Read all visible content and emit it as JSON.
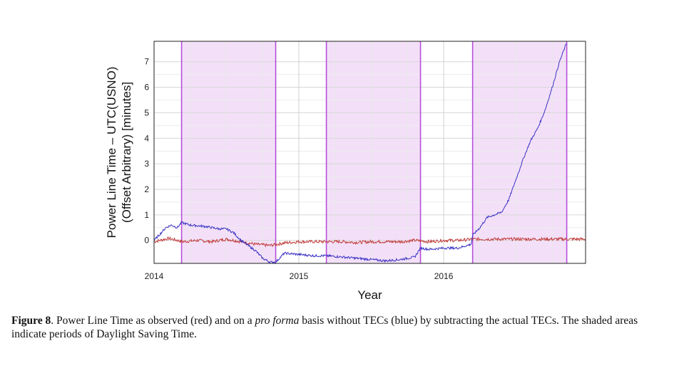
{
  "chart_data": {
    "type": "line",
    "xlabel": "Year",
    "ylabel_line1": "Power Line Time – UTC(USNO)",
    "ylabel_line2": "(Offset Arbitrary)  [minutes]",
    "x_ticks": [
      "2014",
      "2015",
      "2016"
    ],
    "y_ticks": [
      "0",
      "1",
      "2",
      "3",
      "4",
      "5",
      "6",
      "7"
    ],
    "xlim": [
      2014.0,
      2016.98
    ],
    "ylim": [
      -0.9,
      7.8
    ],
    "grid": true,
    "shaded_regions": [
      {
        "start": 2014.19,
        "end": 2014.84,
        "color": "#f3e0f8",
        "edge_color": "#b64fd9"
      },
      {
        "start": 2015.19,
        "end": 2015.84,
        "color": "#f3e0f8",
        "edge_color": "#b64fd9"
      },
      {
        "start": 2016.2,
        "end": 2016.85,
        "color": "#f3e0f8",
        "edge_color": "#b64fd9"
      }
    ],
    "series": [
      {
        "color": "#c23b3b",
        "x": [
          2014.0,
          2014.1,
          2014.2,
          2014.3,
          2014.4,
          2014.5,
          2014.6,
          2014.7,
          2014.8,
          2014.9,
          2015.0,
          2015.1,
          2015.2,
          2015.3,
          2015.4,
          2015.5,
          2015.6,
          2015.7,
          2015.8,
          2015.9,
          2016.0,
          2016.1,
          2016.2,
          2016.3,
          2016.4,
          2016.5,
          2016.6,
          2016.7,
          2016.8,
          2016.9,
          2016.98
        ],
        "y": [
          -0.05,
          0.08,
          -0.05,
          0.0,
          -0.05,
          0.05,
          -0.05,
          -0.15,
          -0.2,
          -0.1,
          -0.05,
          -0.05,
          -0.05,
          -0.05,
          -0.08,
          -0.05,
          -0.05,
          -0.05,
          0.0,
          -0.05,
          0.0,
          0.0,
          0.05,
          0.05,
          0.05,
          0.05,
          0.05,
          0.05,
          0.05,
          0.05,
          0.05
        ]
      },
      {
        "color": "#3b33c4",
        "x": [
          2014.0,
          2014.05,
          2014.08,
          2014.12,
          2014.16,
          2014.19,
          2014.25,
          2014.35,
          2014.45,
          2014.5,
          2014.55,
          2014.6,
          2014.65,
          2014.7,
          2014.75,
          2014.8,
          2014.84,
          2014.9,
          2015.0,
          2015.1,
          2015.19,
          2015.3,
          2015.4,
          2015.5,
          2015.6,
          2015.7,
          2015.8,
          2015.84,
          2015.9,
          2016.0,
          2016.1,
          2016.19,
          2016.2,
          2016.25,
          2016.3,
          2016.35,
          2016.4,
          2016.45,
          2016.5,
          2016.55,
          2016.6,
          2016.65,
          2016.7,
          2016.75,
          2016.8,
          2016.85
        ],
        "y": [
          0.0,
          0.3,
          0.5,
          0.6,
          0.5,
          0.7,
          0.6,
          0.55,
          0.45,
          0.45,
          0.3,
          0.0,
          -0.2,
          -0.4,
          -0.7,
          -0.85,
          -0.85,
          -0.5,
          -0.55,
          -0.6,
          -0.6,
          -0.65,
          -0.7,
          -0.75,
          -0.8,
          -0.75,
          -0.65,
          -0.3,
          -0.35,
          -0.3,
          -0.3,
          -0.15,
          0.2,
          0.5,
          0.9,
          1.0,
          1.1,
          1.6,
          2.4,
          3.2,
          3.9,
          4.4,
          5.1,
          6.0,
          7.0,
          7.75
        ]
      }
    ]
  },
  "caption": {
    "label": "Figure 8",
    "text_before": ". Power Line Time as observed (red) and on a ",
    "italic": "pro forma",
    "text_after": " basis without TECs (blue) by subtracting the actual TECs. The shaded areas indicate periods of Daylight Saving Time."
  }
}
